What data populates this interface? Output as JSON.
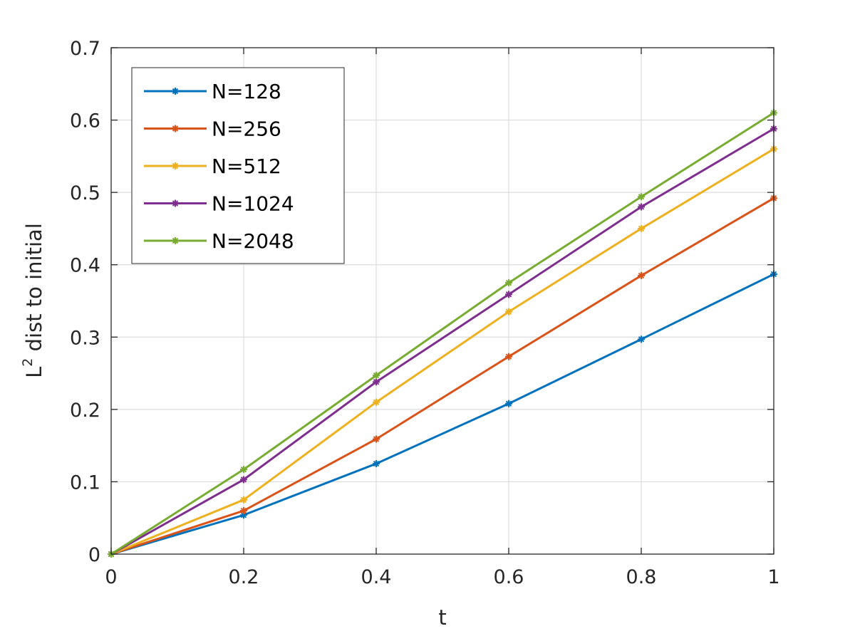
{
  "chart_data": {
    "type": "line",
    "x": [
      0,
      0.2,
      0.4,
      0.6,
      0.8,
      1
    ],
    "xlabel": "t",
    "ylabel": "L",
    "ylabel_superscript": "2",
    "ylabel_rest": " dist to initial",
    "xlim": [
      0,
      1
    ],
    "ylim": [
      0,
      0.7
    ],
    "xticks": [
      "0",
      "0.2",
      "0.4",
      "0.6",
      "0.8",
      "1"
    ],
    "yticks": [
      "0",
      "0.1",
      "0.2",
      "0.3",
      "0.4",
      "0.5",
      "0.6",
      "0.7"
    ],
    "grid": true,
    "legend_position": "top-left",
    "marker": "asterisk",
    "series": [
      {
        "name": "N=128",
        "color": "#0072BD",
        "values": [
          0,
          0.054,
          0.125,
          0.208,
          0.297,
          0.387
        ]
      },
      {
        "name": "N=256",
        "color": "#D95319",
        "values": [
          0,
          0.06,
          0.159,
          0.273,
          0.385,
          0.492
        ]
      },
      {
        "name": "N=512",
        "color": "#EDB120",
        "values": [
          0,
          0.075,
          0.21,
          0.335,
          0.45,
          0.56
        ]
      },
      {
        "name": "N=1024",
        "color": "#7E2F8E",
        "values": [
          0,
          0.103,
          0.238,
          0.359,
          0.48,
          0.588
        ]
      },
      {
        "name": "N=2048",
        "color": "#77AC30",
        "values": [
          0,
          0.117,
          0.247,
          0.375,
          0.494,
          0.61
        ]
      }
    ]
  }
}
